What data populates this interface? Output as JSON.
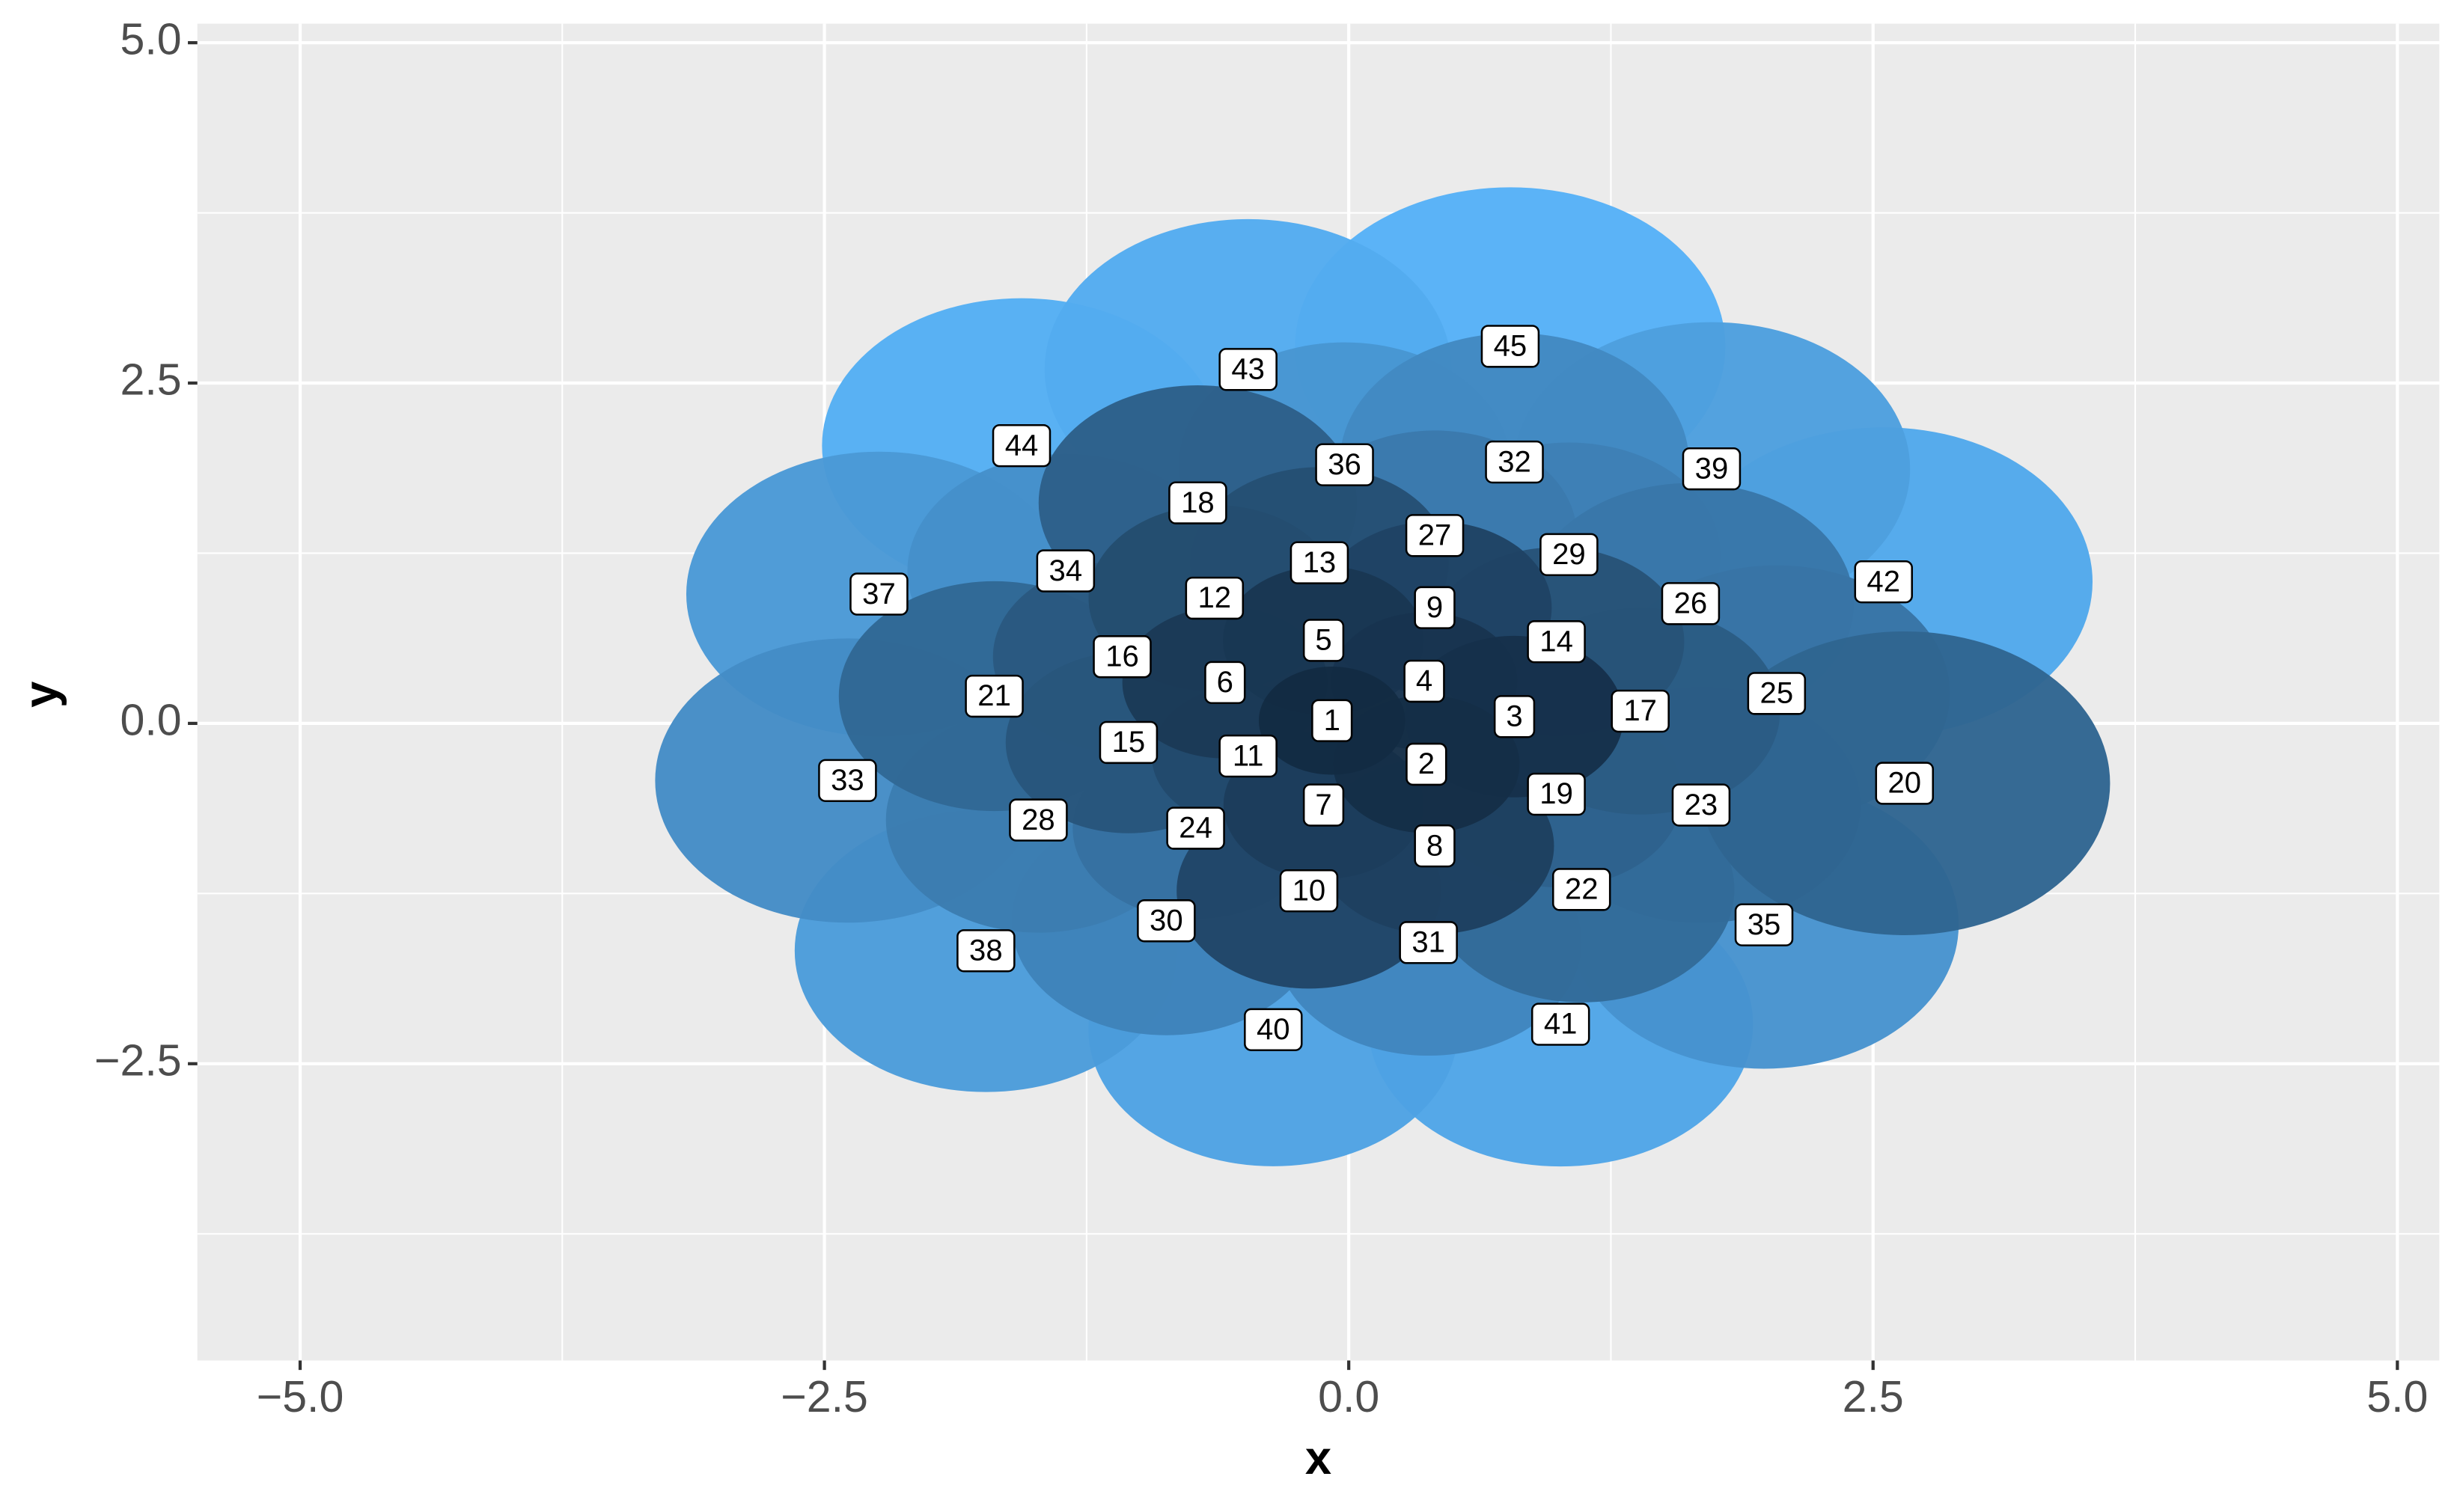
{
  "chart_data": {
    "type": "scatter",
    "x_label": "x",
    "y_label": "y",
    "labels": [
      "1",
      "2",
      "3",
      "4",
      "5",
      "6",
      "7",
      "8",
      "9",
      "10",
      "11",
      "12",
      "13",
      "14",
      "15",
      "16",
      "17",
      "18",
      "19",
      "20",
      "21",
      "22",
      "23",
      "24",
      "25",
      "26",
      "27",
      "28",
      "29",
      "30",
      "31",
      "32",
      "33",
      "34",
      "35",
      "36",
      "37",
      "38",
      "39",
      "40",
      "41",
      "42",
      "43",
      "44",
      "45"
    ],
    "x": [
      -0.08,
      0.37,
      0.79,
      0.36,
      -0.12,
      -0.59,
      -0.12,
      0.41,
      0.41,
      -0.19,
      -0.48,
      -0.64,
      -0.14,
      0.99,
      -1.05,
      -1.08,
      1.39,
      -0.72,
      0.99,
      2.65,
      -1.69,
      1.11,
      1.68,
      -0.73,
      2.04,
      1.63,
      0.41,
      -1.48,
      1.05,
      -0.87,
      0.38,
      0.79,
      -2.39,
      -1.35,
      1.98,
      -0.02,
      -2.24,
      -1.73,
      1.73,
      -0.36,
      1.01,
      2.55,
      -0.48,
      -1.56,
      0.77
    ],
    "y": [
      0.02,
      -0.3,
      0.05,
      0.31,
      0.61,
      0.3,
      -0.6,
      -0.9,
      0.85,
      -1.23,
      -0.24,
      0.92,
      1.18,
      0.6,
      -0.14,
      0.49,
      0.09,
      1.62,
      -0.52,
      -0.44,
      0.2,
      -1.22,
      -0.6,
      -0.77,
      0.22,
      0.88,
      1.38,
      -0.71,
      1.24,
      -1.45,
      -1.61,
      1.92,
      -0.42,
      1.12,
      -1.48,
      1.9,
      0.95,
      -1.67,
      1.87,
      -2.25,
      -2.21,
      1.04,
      2.6,
      2.04,
      2.77
    ],
    "gradient": [
      "#132B43",
      "#56B1F7"
    ],
    "xlim": [
      -5.49,
      5.2
    ],
    "ylim": [
      -4.68,
      5.14
    ],
    "xticks": [
      {
        "value": -5,
        "label": "−5.0"
      },
      {
        "value": -2.5,
        "label": "−2.5"
      },
      {
        "value": 0,
        "label": "0.0"
      },
      {
        "value": 2.5,
        "label": "2.5"
      },
      {
        "value": 5,
        "label": "5.0"
      }
    ],
    "yticks": [
      {
        "value": -2.5,
        "label": "−2.5"
      },
      {
        "value": 0,
        "label": "0.0"
      },
      {
        "value": 2.5,
        "label": "2.5"
      },
      {
        "value": 5,
        "label": "5.0"
      }
    ],
    "grid": true
  }
}
